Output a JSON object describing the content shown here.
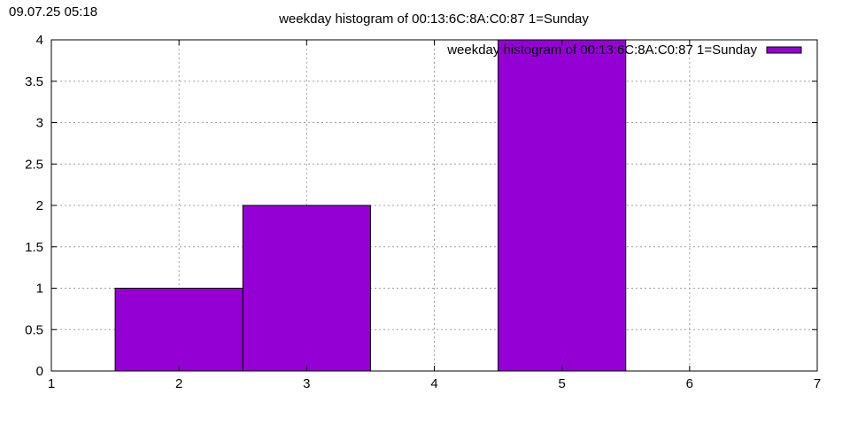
{
  "timestamp": "09.07.25 05:18",
  "chart_data": {
    "type": "bar",
    "title": "weekday histogram of 00:13:6C:8A:C0:87 1=Sunday",
    "xlabel": "",
    "ylabel": "",
    "xlim": [
      1,
      7
    ],
    "ylim": [
      0,
      4
    ],
    "x_ticks": [
      "1",
      "2",
      "3",
      "4",
      "5",
      "6",
      "7"
    ],
    "y_ticks": [
      "0",
      "0.5",
      "1",
      "1.5",
      "2",
      "2.5",
      "3",
      "3.5",
      "4"
    ],
    "grid": true,
    "legend_position": "top-right",
    "bar_width": 1,
    "series": [
      {
        "name": "weekday histogram of 00:13:6C:8A:C0:87 1=Sunday",
        "color": "#9400d3",
        "x": [
          2,
          3,
          5
        ],
        "values": [
          1,
          2,
          4
        ]
      }
    ]
  }
}
